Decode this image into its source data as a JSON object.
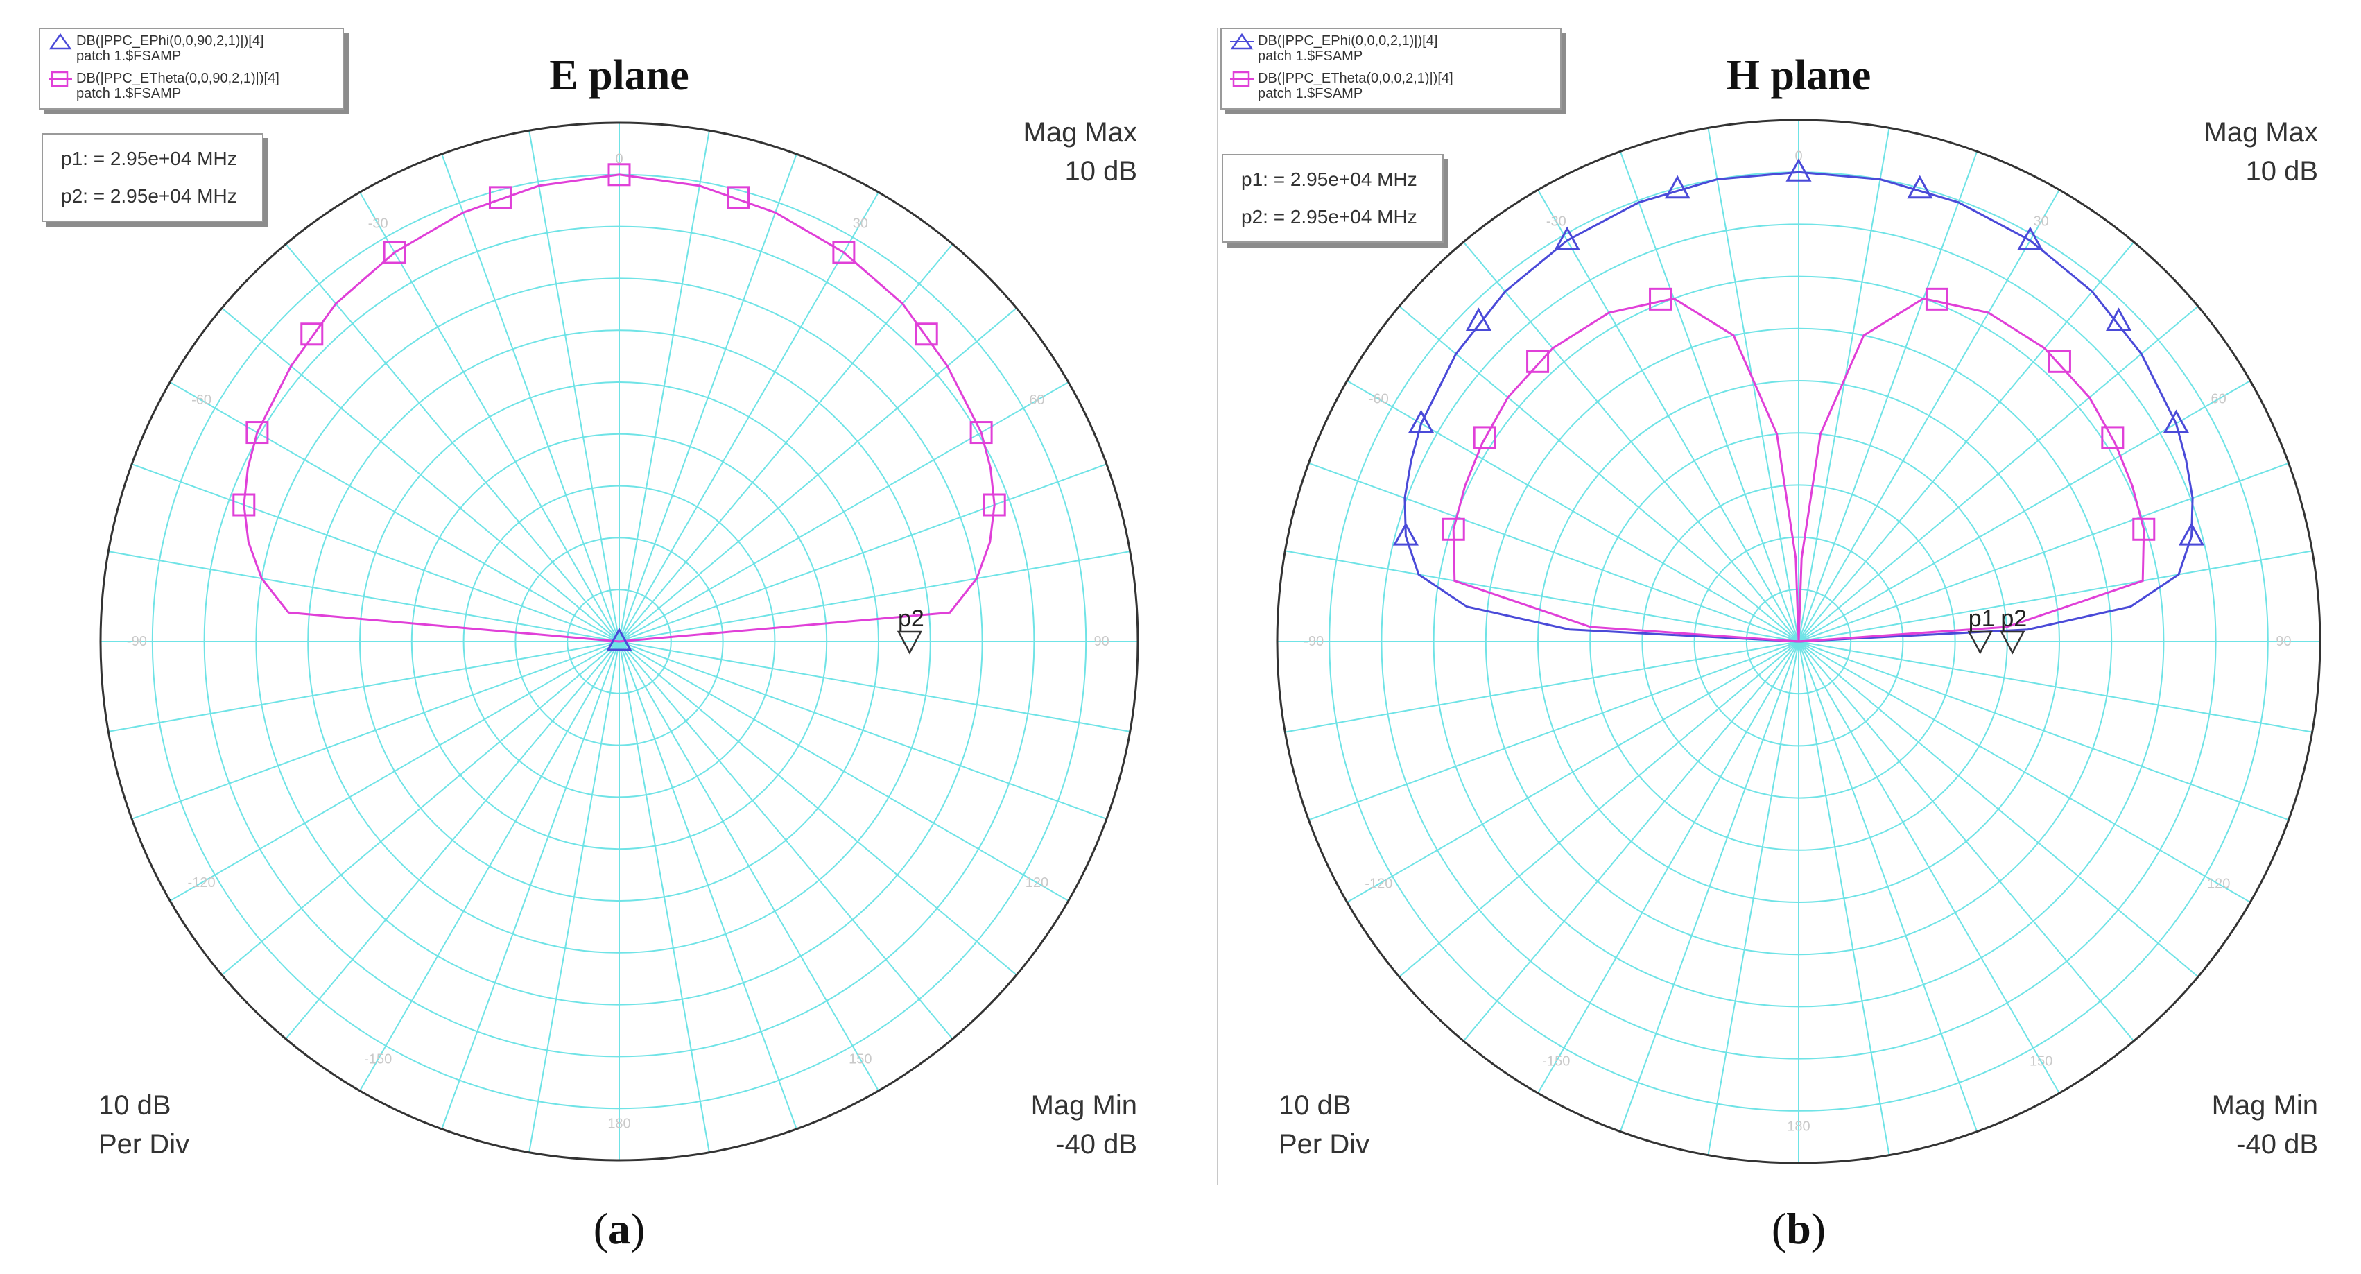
{
  "chart_data": [
    {
      "type": "polar",
      "panel_label": "a",
      "title": "E plane",
      "radial_unit": "dB",
      "mag_max": {
        "label": "Mag Max",
        "value": "10 dB"
      },
      "mag_min": {
        "label": "Mag Min",
        "value": "-40 dB"
      },
      "per_div": {
        "value": "10 dB",
        "label": "Per Div"
      },
      "r_range": [
        -40,
        10
      ],
      "theta_range_deg": [
        -180,
        180
      ],
      "theta_zero": "top",
      "angle_tick_labels": [
        "-90",
        "-60",
        "-30",
        "0",
        "30",
        "60",
        "90",
        "120",
        "150",
        "180",
        "-150",
        "-120"
      ],
      "legend": [
        {
          "name": "DB(|PPC_EPhi(0,0,90,2,1)|)[4]",
          "sub": "patch 1.$FSAMP",
          "marker": "triangle",
          "color": "#4a4ad8"
        },
        {
          "name": "DB(|PPC_ETheta(0,0,90,2,1)|)[4]",
          "sub": "patch 1.$FSAMP",
          "marker": "square",
          "color": "#e040d8"
        }
      ],
      "markers_box": [
        "p1: = 2.95e+04 MHz",
        "p2: = 2.95e+04 MHz"
      ],
      "series": [
        {
          "name": "DB(|PPC_ETheta(0,0,90,2,1)|)[4]",
          "color": "#e040d8",
          "marker": "square",
          "theta_deg": [
            -90,
            -85,
            -80,
            -75,
            -70,
            -65,
            -60,
            -50,
            -40,
            -30,
            -20,
            -10,
            0,
            10,
            20,
            30,
            40,
            50,
            60,
            65,
            70,
            75,
            80,
            85,
            90
          ],
          "r_db": [
            -40,
            -8,
            -5,
            -3,
            -1.5,
            -0.5,
            0.3,
            1.3,
            2.5,
            3.3,
            4,
            4.6,
            5,
            4.6,
            4,
            3.3,
            2.5,
            1.3,
            0.3,
            -0.5,
            -1.5,
            -3,
            -5,
            -8,
            -40
          ],
          "marker_points": {
            "theta_deg": [
              -70,
              -60,
              -45,
              -30,
              -15,
              0,
              15,
              30,
              45,
              60,
              70
            ],
            "r_db": [
              -1.5,
              0.3,
              1.9,
              3.3,
              4.3,
              5,
              4.3,
              3.3,
              1.9,
              0.3,
              -1.5
            ]
          }
        },
        {
          "name": "DB(|PPC_EPhi(0,0,90,2,1)|)[4]",
          "color": "#4a4ad8",
          "marker": "triangle",
          "theta_deg": [
            0
          ],
          "r_db": [
            -40
          ],
          "marker_points": {
            "theta_deg": [
              0
            ],
            "r_db": [
              -40
            ]
          }
        }
      ],
      "point_markers": [
        {
          "label": "p2",
          "theta_deg": 90,
          "r_db": -12
        }
      ]
    },
    {
      "type": "polar",
      "panel_label": "b",
      "title": "H plane",
      "radial_unit": "dB",
      "mag_max": {
        "label": "Mag Max",
        "value": "10 dB"
      },
      "mag_min": {
        "label": "Mag Min",
        "value": "-40 dB"
      },
      "per_div": {
        "value": "10 dB",
        "label": "Per Div"
      },
      "r_range": [
        -40,
        10
      ],
      "theta_range_deg": [
        -180,
        180
      ],
      "theta_zero": "top",
      "angle_tick_labels": [
        "-90",
        "-60",
        "-30",
        "0",
        "30",
        "60",
        "90",
        "120",
        "150",
        "180",
        "-150",
        "-120"
      ],
      "legend": [
        {
          "name": "DB(|PPC_EPhi(0,0,0,2,1)|)[4]",
          "sub": "patch 1.$FSAMP",
          "marker": "triangle",
          "color": "#4a4ad8"
        },
        {
          "name": "DB(|PPC_ETheta(0,0,0,2,1)|)[4]",
          "sub": "patch 1.$FSAMP",
          "marker": "square",
          "color": "#e040d8"
        }
      ],
      "markers_box": [
        "p1: = 2.95e+04 MHz",
        "p2: = 2.95e+04 MHz"
      ],
      "series": [
        {
          "name": "DB(|PPC_EPhi(0,0,0,2,1)|)[4]",
          "color": "#4a4ad8",
          "marker": "triangle",
          "theta_deg": [
            -90,
            -87,
            -84,
            -80,
            -75,
            -70,
            -65,
            -60,
            -50,
            -40,
            -30,
            -20,
            -10,
            0,
            10,
            20,
            30,
            40,
            50,
            60,
            65,
            70,
            75,
            80,
            84,
            87,
            90
          ],
          "r_db": [
            -40,
            -18,
            -8,
            -3,
            -1,
            0.2,
            1,
            1.8,
            2.9,
            3.8,
            4.4,
            4.8,
            5,
            5,
            5,
            4.8,
            4.4,
            3.8,
            2.9,
            1.8,
            1,
            0.2,
            -1,
            -3,
            -8,
            -18,
            -40
          ],
          "marker_points": {
            "theta_deg": [
              -75,
              -60,
              -45,
              -30,
              -15,
              0,
              15,
              30,
              45,
              60,
              75
            ],
            "r_db": [
              -1,
              1.8,
              3.4,
              4.4,
              4.9,
              5,
              4.9,
              4.4,
              3.4,
              1.8,
              -1
            ]
          }
        },
        {
          "name": "DB(|PPC_ETheta(0,0,0,2,1)|)[4]",
          "color": "#e040d8",
          "marker": "square",
          "theta_deg": [
            -90,
            -86,
            -80,
            -72,
            -65,
            -58,
            -50,
            -40,
            -30,
            -20,
            -12,
            -6,
            -2,
            0,
            2,
            6,
            12,
            20,
            30,
            40,
            50,
            58,
            65,
            72,
            80,
            86,
            90
          ],
          "r_db": [
            -40,
            -20,
            -6.5,
            -5.2,
            -4.7,
            -4.2,
            -3.6,
            -3.3,
            -3.6,
            -5,
            -10,
            -20,
            -32,
            -40,
            -32,
            -20,
            -10,
            -5,
            -3.6,
            -3.3,
            -3.6,
            -4.2,
            -4.7,
            -5.2,
            -6.5,
            -20,
            -40
          ],
          "marker_points": {
            "theta_deg": [
              -72,
              -57,
              -43,
              -22,
              22,
              43,
              57,
              72
            ],
            "r_db": [
              -5.2,
              -4.1,
              -3.3,
              -4.6,
              -4.6,
              -3.3,
              -4.1,
              -5.2
            ]
          }
        }
      ],
      "point_markers": [
        {
          "label": "p1",
          "theta_deg": 90,
          "r_db": -22.6
        },
        {
          "label": "p2",
          "theta_deg": 90,
          "r_db": -19.5
        }
      ]
    }
  ]
}
